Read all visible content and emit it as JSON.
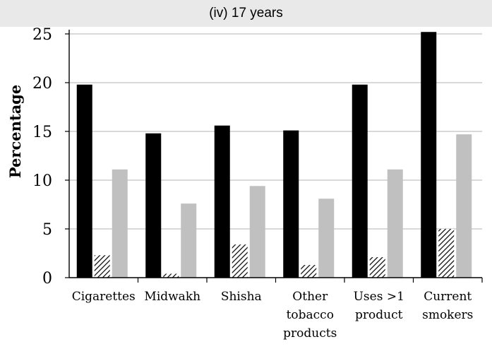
{
  "chart_data": {
    "type": "bar",
    "title": "(iv) 17 years",
    "xlabel": "",
    "ylabel": "Percentage",
    "ylim": [
      0,
      25
    ],
    "yticks": [
      "0",
      "5",
      "10",
      "15",
      "20",
      "25"
    ],
    "grid": true,
    "categories": [
      [
        "Cigarettes"
      ],
      [
        "Midwakh"
      ],
      [
        "Shisha"
      ],
      [
        "Other",
        "tobacco",
        "products"
      ],
      [
        "Uses >1",
        "product"
      ],
      [
        "Current",
        "smokers"
      ]
    ],
    "series": [
      {
        "color": "#000000",
        "pattern": "solid",
        "values": [
          19.8,
          14.8,
          15.6,
          15.1,
          19.8,
          25.2
        ]
      },
      {
        "color": "#000000",
        "pattern": "diagonal-hatch",
        "values": [
          2.3,
          0.4,
          3.4,
          1.3,
          2.1,
          5.0
        ]
      },
      {
        "color": "#c0c0c0",
        "pattern": "solid",
        "values": [
          11.1,
          7.6,
          9.4,
          8.1,
          11.1,
          14.7
        ]
      }
    ]
  }
}
